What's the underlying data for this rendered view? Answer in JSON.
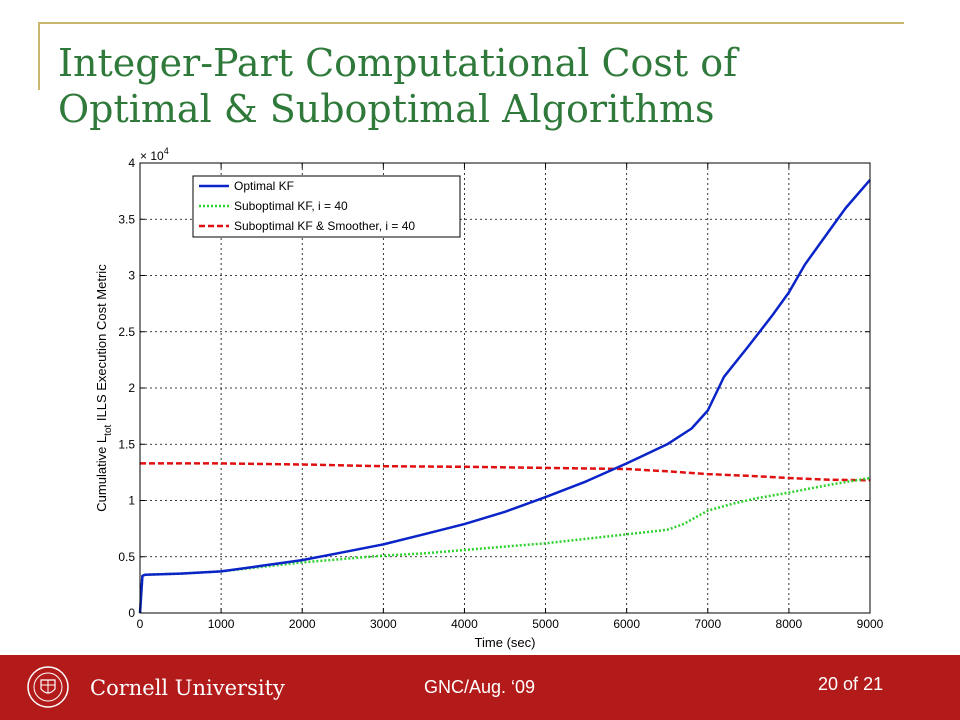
{
  "slide": {
    "title_line1": "Integer-Part Computational Cost of",
    "title_line2": "Optimal & Suboptimal Algorithms"
  },
  "footer": {
    "logo_text": "Cornell University",
    "center_text": "GNC/Aug. ‘09",
    "page_number": "20",
    "page_of": "of",
    "page_total": "21",
    "background_color": "#b31b1b"
  },
  "chart_data": {
    "type": "line",
    "xlabel": "Time (sec)",
    "ylabel_prefix": "Cumulative ",
    "ylabel_L": "L",
    "ylabel_sub": "tot",
    "ylabel_suffix": " ILLS Execution Cost Metric",
    "exponent_base": "× 10",
    "exponent_power": "4",
    "xlim": [
      0,
      9000
    ],
    "ylim": [
      0,
      40000
    ],
    "xticks": [
      0,
      1000,
      2000,
      3000,
      4000,
      5000,
      6000,
      7000,
      8000,
      9000
    ],
    "yticks": [
      0,
      5000,
      10000,
      15000,
      20000,
      25000,
      30000,
      35000,
      40000
    ],
    "xtick_labels": [
      "0",
      "1000",
      "2000",
      "3000",
      "4000",
      "5000",
      "6000",
      "7000",
      "8000",
      "9000"
    ],
    "ytick_labels": [
      "0",
      "0.5",
      "1",
      "1.5",
      "2",
      "2.5",
      "3",
      "3.5",
      "4"
    ],
    "grid": true,
    "legend_position": "top-left",
    "series": [
      {
        "name": "Optimal KF",
        "color": "#0a24c8",
        "style": "solid",
        "x": [
          0,
          30,
          60,
          500,
          1000,
          1500,
          2000,
          2500,
          3000,
          3500,
          4000,
          4500,
          5000,
          5500,
          6000,
          6500,
          6800,
          7000,
          7200,
          7500,
          7800,
          8000,
          8200,
          8500,
          8700,
          9000
        ],
        "y": [
          0,
          3300,
          3400,
          3500,
          3700,
          4200,
          4700,
          5400,
          6100,
          7000,
          7900,
          9000,
          10300,
          11700,
          13300,
          15000,
          16400,
          18000,
          21000,
          23700,
          26500,
          28500,
          31000,
          34000,
          36000,
          38500
        ]
      },
      {
        "name": "Suboptimal KF, i = 40",
        "color": "#2ed12e",
        "style": "dotted",
        "x": [
          0,
          30,
          60,
          500,
          1000,
          1500,
          2000,
          2500,
          3000,
          3500,
          4000,
          4500,
          5000,
          5500,
          6000,
          6500,
          6700,
          7000,
          7300,
          7600,
          8000,
          8500,
          9000
        ],
        "y": [
          0,
          3300,
          3400,
          3500,
          3700,
          4100,
          4500,
          4800,
          5100,
          5300,
          5600,
          5900,
          6200,
          6600,
          7000,
          7400,
          7900,
          9100,
          9700,
          10200,
          10700,
          11400,
          12000
        ]
      },
      {
        "name": "Suboptimal KF & Smoother, i = 40",
        "color": "#e01010",
        "style": "dashed",
        "x": [
          0,
          1000,
          2000,
          3000,
          4000,
          5000,
          6000,
          6500,
          7000,
          7500,
          8000,
          8500,
          9000
        ],
        "y": [
          13300,
          13300,
          13200,
          13050,
          13000,
          12900,
          12800,
          12600,
          12350,
          12200,
          12000,
          11850,
          11800
        ]
      }
    ]
  }
}
